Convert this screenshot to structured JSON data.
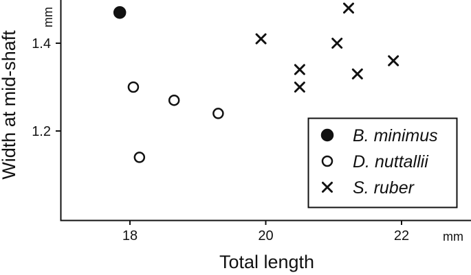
{
  "chart_data": {
    "type": "scatter",
    "xlabel": "Total length",
    "ylabel": "Width at mid-shaft",
    "x_unit": "mm",
    "y_unit": "mm",
    "xlim": [
      17.0,
      23.0
    ],
    "ylim": [
      1.0,
      1.49
    ],
    "x_ticks": [
      {
        "value": 18,
        "label": "18"
      },
      {
        "value": 20,
        "label": "20"
      },
      {
        "value": 22,
        "label": "22"
      }
    ],
    "y_ticks": [
      {
        "value": 1.2,
        "label": "1.2"
      },
      {
        "value": 1.4,
        "label": "1.4"
      }
    ],
    "grid": false,
    "legend_position": "bottom-right",
    "series": [
      {
        "name": "B. minimus",
        "marker": "filled-circle",
        "points": [
          {
            "x": 17.85,
            "y": 1.47
          }
        ]
      },
      {
        "name": "D. nuttallii",
        "marker": "open-circle",
        "points": [
          {
            "x": 18.05,
            "y": 1.3
          },
          {
            "x": 18.14,
            "y": 1.14
          },
          {
            "x": 18.65,
            "y": 1.27
          },
          {
            "x": 19.3,
            "y": 1.24
          }
        ]
      },
      {
        "name": "S. ruber",
        "marker": "cross",
        "points": [
          {
            "x": 19.93,
            "y": 1.41
          },
          {
            "x": 20.5,
            "y": 1.34
          },
          {
            "x": 20.5,
            "y": 1.3
          },
          {
            "x": 21.05,
            "y": 1.4
          },
          {
            "x": 21.22,
            "y": 1.48
          },
          {
            "x": 21.35,
            "y": 1.33
          },
          {
            "x": 21.88,
            "y": 1.36
          }
        ]
      }
    ]
  }
}
